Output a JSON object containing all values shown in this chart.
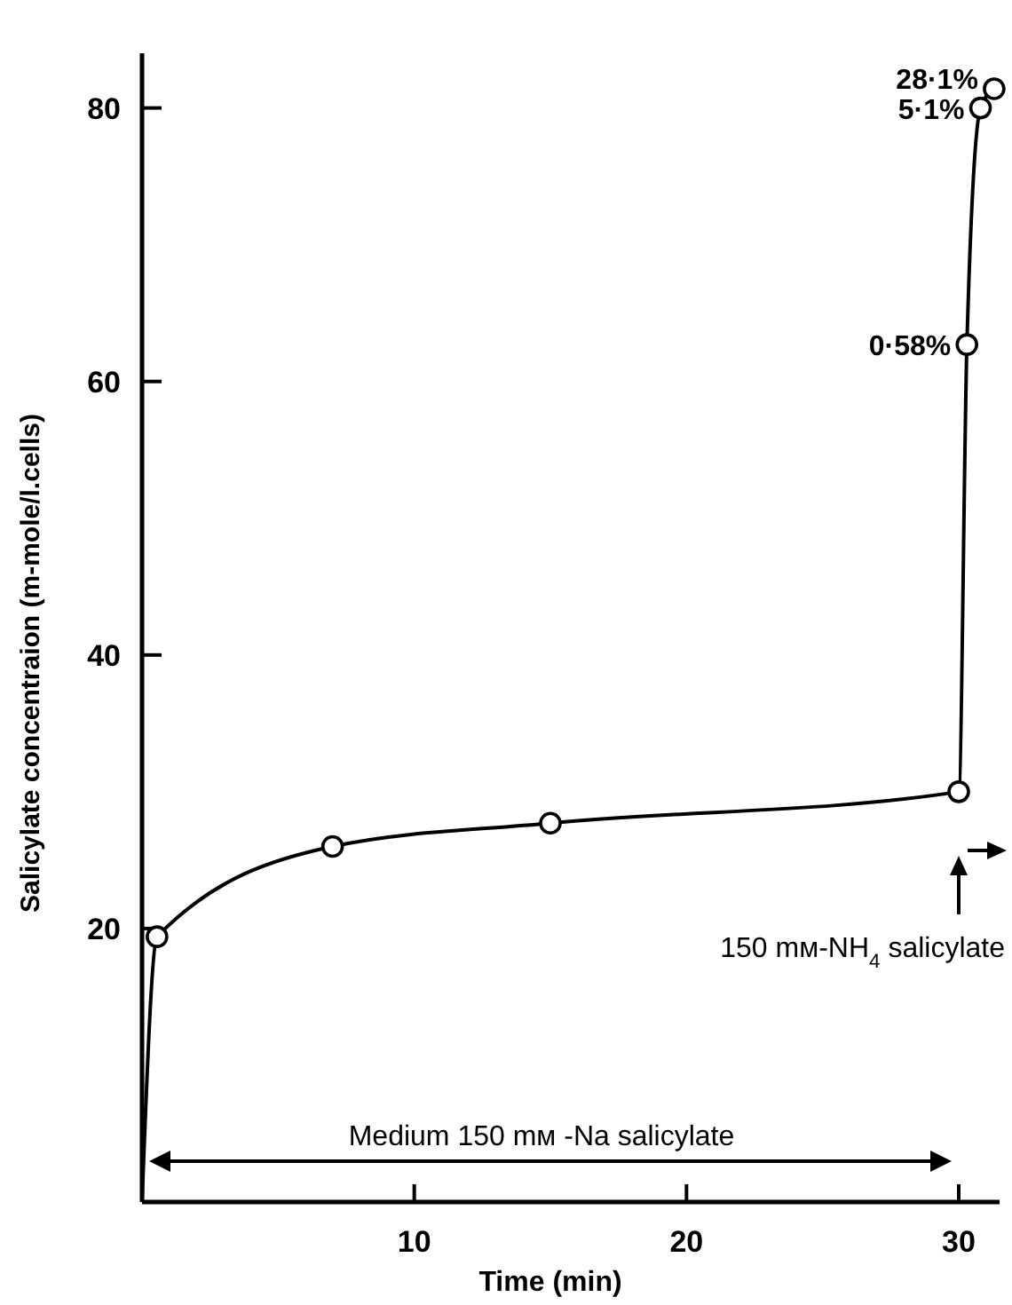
{
  "chart_data": {
    "type": "line",
    "xlabel": "Time (min)",
    "ylabel": "Salicylate concentraion (m-mole/l.cells)",
    "xlim": [
      0,
      31.5
    ],
    "ylim": [
      0,
      84
    ],
    "xticks": [
      10,
      20,
      30
    ],
    "yticks": [
      20,
      40,
      60,
      80
    ],
    "series": [
      {
        "color": "#000000",
        "marker": "none",
        "line_style": "solid",
        "x": [
          0,
          0.55,
          7,
          15,
          30,
          30.3,
          30.8,
          31.3
        ],
        "values": [
          0,
          19.4,
          26.0,
          27.7,
          30.0,
          62.7,
          80.0,
          81.4
        ]
      },
      {
        "type": "scatter",
        "color": "#000000",
        "marker": "circle",
        "x": [
          0.55,
          7,
          15,
          30,
          30.3,
          30.8,
          31.3
        ],
        "values": [
          19.4,
          26.0,
          27.7,
          30.0,
          62.7,
          80.0,
          81.4
        ],
        "value_labels": [
          null,
          null,
          null,
          null,
          "0·58%",
          "5·1%",
          "28·1%"
        ]
      }
    ],
    "annotations": [
      "Medium 150 mᴍ -Na salicylate",
      "150 mᴍ-NH$_{4}$ salicylate"
    ]
  }
}
